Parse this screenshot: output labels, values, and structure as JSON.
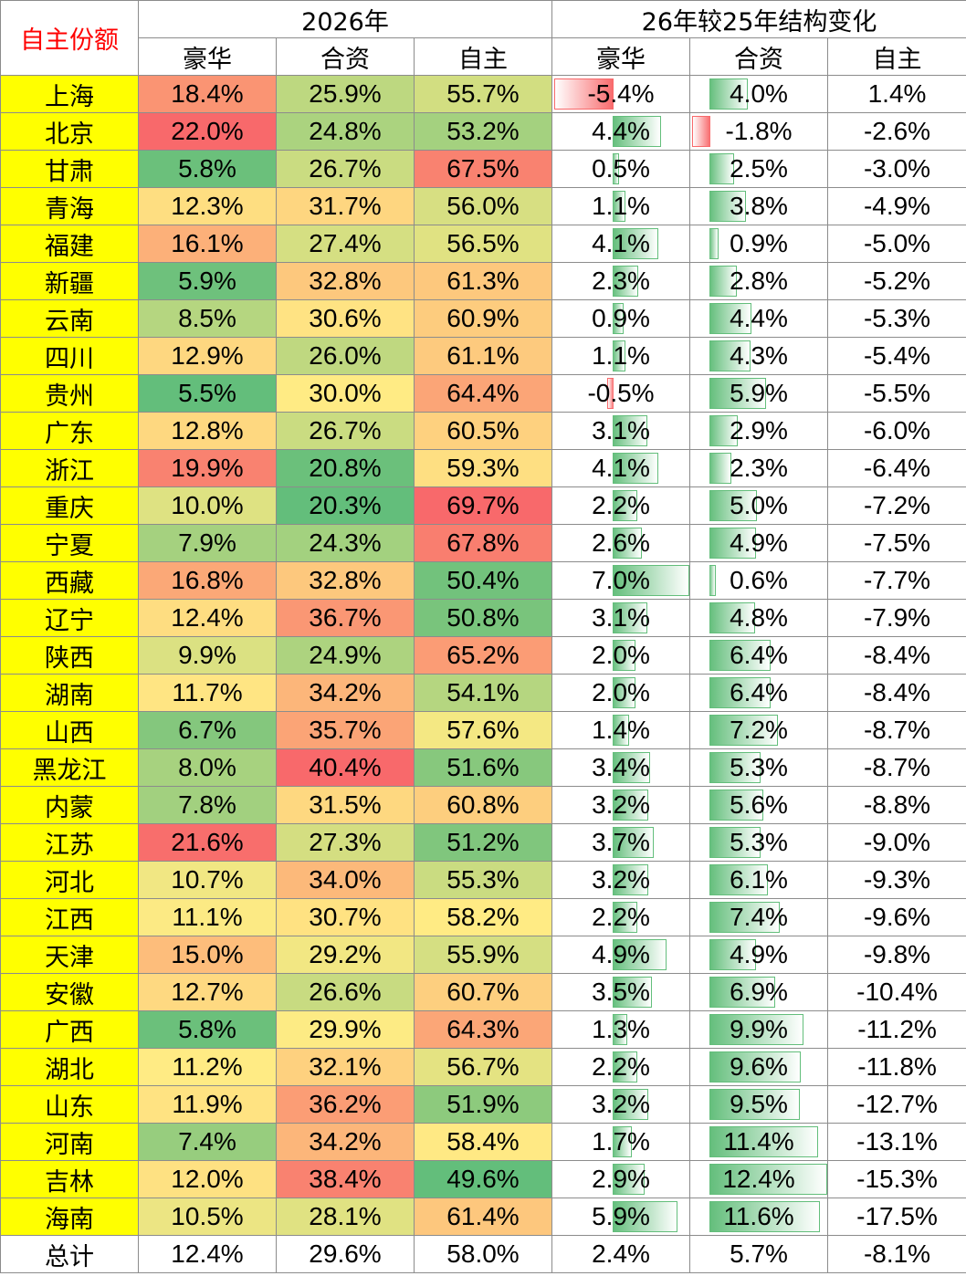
{
  "header": {
    "corner_label": "自主份额",
    "group_2026": "2026年",
    "group_change": "26年较25年结构变化",
    "cols": [
      "豪华",
      "合资",
      "自主",
      "豪华",
      "合资",
      "自主"
    ]
  },
  "colors": {
    "province_bg": "#ffff00",
    "scale_low": "#63be7b",
    "scale_mid": "#ffeb84",
    "scale_high": "#f8696b",
    "bar_positive": "#63be7b",
    "bar_negative": "#f8696b",
    "corner_text": "#ff0000"
  },
  "rows": [
    {
      "province": "上海",
      "lux": "18.4%",
      "jv": "25.9%",
      "own": "55.7%",
      "d_lux": "-5.4%",
      "d_jv": "4.0%",
      "d_own": "1.4%"
    },
    {
      "province": "北京",
      "lux": "22.0%",
      "jv": "24.8%",
      "own": "53.2%",
      "d_lux": "4.4%",
      "d_jv": "-1.8%",
      "d_own": "-2.6%"
    },
    {
      "province": "甘肃",
      "lux": "5.8%",
      "jv": "26.7%",
      "own": "67.5%",
      "d_lux": "0.5%",
      "d_jv": "2.5%",
      "d_own": "-3.0%"
    },
    {
      "province": "青海",
      "lux": "12.3%",
      "jv": "31.7%",
      "own": "56.0%",
      "d_lux": "1.1%",
      "d_jv": "3.8%",
      "d_own": "-4.9%"
    },
    {
      "province": "福建",
      "lux": "16.1%",
      "jv": "27.4%",
      "own": "56.5%",
      "d_lux": "4.1%",
      "d_jv": "0.9%",
      "d_own": "-5.0%"
    },
    {
      "province": "新疆",
      "lux": "5.9%",
      "jv": "32.8%",
      "own": "61.3%",
      "d_lux": "2.3%",
      "d_jv": "2.8%",
      "d_own": "-5.2%"
    },
    {
      "province": "云南",
      "lux": "8.5%",
      "jv": "30.6%",
      "own": "60.9%",
      "d_lux": "0.9%",
      "d_jv": "4.4%",
      "d_own": "-5.3%"
    },
    {
      "province": "四川",
      "lux": "12.9%",
      "jv": "26.0%",
      "own": "61.1%",
      "d_lux": "1.1%",
      "d_jv": "4.3%",
      "d_own": "-5.4%"
    },
    {
      "province": "贵州",
      "lux": "5.5%",
      "jv": "30.0%",
      "own": "64.4%",
      "d_lux": "-0.5%",
      "d_jv": "5.9%",
      "d_own": "-5.5%"
    },
    {
      "province": "广东",
      "lux": "12.8%",
      "jv": "26.7%",
      "own": "60.5%",
      "d_lux": "3.1%",
      "d_jv": "2.9%",
      "d_own": "-6.0%"
    },
    {
      "province": "浙江",
      "lux": "19.9%",
      "jv": "20.8%",
      "own": "59.3%",
      "d_lux": "4.1%",
      "d_jv": "2.3%",
      "d_own": "-6.4%"
    },
    {
      "province": "重庆",
      "lux": "10.0%",
      "jv": "20.3%",
      "own": "69.7%",
      "d_lux": "2.2%",
      "d_jv": "5.0%",
      "d_own": "-7.2%"
    },
    {
      "province": "宁夏",
      "lux": "7.9%",
      "jv": "24.3%",
      "own": "67.8%",
      "d_lux": "2.6%",
      "d_jv": "4.9%",
      "d_own": "-7.5%"
    },
    {
      "province": "西藏",
      "lux": "16.8%",
      "jv": "32.8%",
      "own": "50.4%",
      "d_lux": "7.0%",
      "d_jv": "0.6%",
      "d_own": "-7.7%"
    },
    {
      "province": "辽宁",
      "lux": "12.4%",
      "jv": "36.7%",
      "own": "50.8%",
      "d_lux": "3.1%",
      "d_jv": "4.8%",
      "d_own": "-7.9%"
    },
    {
      "province": "陕西",
      "lux": "9.9%",
      "jv": "24.9%",
      "own": "65.2%",
      "d_lux": "2.0%",
      "d_jv": "6.4%",
      "d_own": "-8.4%"
    },
    {
      "province": "湖南",
      "lux": "11.7%",
      "jv": "34.2%",
      "own": "54.1%",
      "d_lux": "2.0%",
      "d_jv": "6.4%",
      "d_own": "-8.4%"
    },
    {
      "province": "山西",
      "lux": "6.7%",
      "jv": "35.7%",
      "own": "57.6%",
      "d_lux": "1.4%",
      "d_jv": "7.2%",
      "d_own": "-8.7%"
    },
    {
      "province": "黑龙江",
      "lux": "8.0%",
      "jv": "40.4%",
      "own": "51.6%",
      "d_lux": "3.4%",
      "d_jv": "5.3%",
      "d_own": "-8.7%"
    },
    {
      "province": "内蒙",
      "lux": "7.8%",
      "jv": "31.5%",
      "own": "60.8%",
      "d_lux": "3.2%",
      "d_jv": "5.6%",
      "d_own": "-8.8%"
    },
    {
      "province": "江苏",
      "lux": "21.6%",
      "jv": "27.3%",
      "own": "51.2%",
      "d_lux": "3.7%",
      "d_jv": "5.3%",
      "d_own": "-9.0%"
    },
    {
      "province": "河北",
      "lux": "10.7%",
      "jv": "34.0%",
      "own": "55.3%",
      "d_lux": "3.2%",
      "d_jv": "6.1%",
      "d_own": "-9.3%"
    },
    {
      "province": "江西",
      "lux": "11.1%",
      "jv": "30.7%",
      "own": "58.2%",
      "d_lux": "2.2%",
      "d_jv": "7.4%",
      "d_own": "-9.6%"
    },
    {
      "province": "天津",
      "lux": "15.0%",
      "jv": "29.2%",
      "own": "55.9%",
      "d_lux": "4.9%",
      "d_jv": "4.9%",
      "d_own": "-9.8%"
    },
    {
      "province": "安徽",
      "lux": "12.7%",
      "jv": "26.6%",
      "own": "60.7%",
      "d_lux": "3.5%",
      "d_jv": "6.9%",
      "d_own": "-10.4%"
    },
    {
      "province": "广西",
      "lux": "5.8%",
      "jv": "29.9%",
      "own": "64.3%",
      "d_lux": "1.3%",
      "d_jv": "9.9%",
      "d_own": "-11.2%"
    },
    {
      "province": "湖北",
      "lux": "11.2%",
      "jv": "32.1%",
      "own": "56.7%",
      "d_lux": "2.2%",
      "d_jv": "9.6%",
      "d_own": "-11.8%"
    },
    {
      "province": "山东",
      "lux": "11.9%",
      "jv": "36.2%",
      "own": "51.9%",
      "d_lux": "3.2%",
      "d_jv": "9.5%",
      "d_own": "-12.7%"
    },
    {
      "province": "河南",
      "lux": "7.4%",
      "jv": "34.2%",
      "own": "58.4%",
      "d_lux": "1.7%",
      "d_jv": "11.4%",
      "d_own": "-13.1%"
    },
    {
      "province": "吉林",
      "lux": "12.0%",
      "jv": "38.4%",
      "own": "49.6%",
      "d_lux": "2.9%",
      "d_jv": "12.4%",
      "d_own": "-15.3%"
    },
    {
      "province": "海南",
      "lux": "10.5%",
      "jv": "28.1%",
      "own": "61.4%",
      "d_lux": "5.9%",
      "d_jv": "11.6%",
      "d_own": "-17.5%"
    }
  ],
  "total": {
    "province": "总计",
    "lux": "12.4%",
    "jv": "29.6%",
    "own": "58.0%",
    "d_lux": "2.4%",
    "d_jv": "5.7%",
    "d_own": "-8.1%"
  }
}
